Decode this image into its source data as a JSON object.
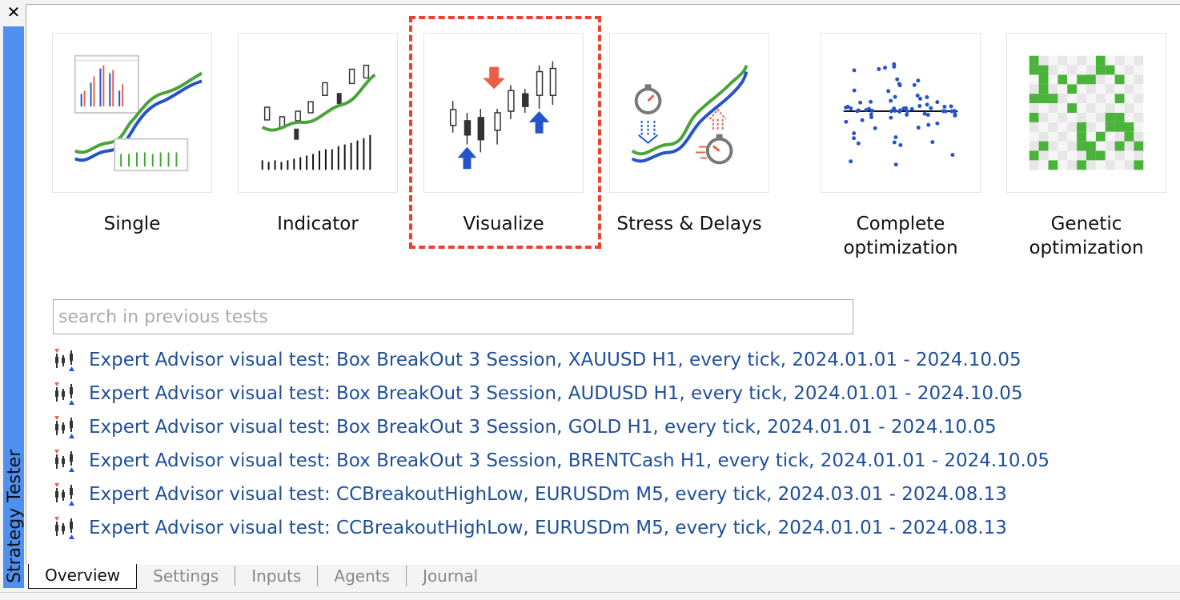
{
  "window": {
    "close_icon": "close-icon",
    "side_title": "Strategy Tester"
  },
  "modes": [
    {
      "label": "Single",
      "icon": "single-test-icon"
    },
    {
      "label": "Indicator",
      "icon": "indicator-test-icon"
    },
    {
      "label": "Visualize",
      "icon": "visualize-test-icon"
    },
    {
      "label": "Stress & Delays",
      "icon": "stress-delays-icon"
    },
    {
      "label": "Complete optimization",
      "icon": "complete-optimization-icon"
    },
    {
      "label": "Genetic optimization",
      "icon": "genetic-optimization-icon"
    }
  ],
  "selected_mode": "Visualize",
  "highlight_color": "#e8432d",
  "search": {
    "placeholder": "search in previous tests",
    "value": ""
  },
  "history": [
    "Expert Advisor visual test: Box BreakOut 3 Session, XAUUSD H1, every tick, 2024.01.01 - 2024.10.05",
    "Expert Advisor visual test: Box BreakOut 3 Session, AUDUSD H1, every tick, 2024.01.01 - 2024.10.05",
    "Expert Advisor visual test: Box BreakOut 3 Session, GOLD H1, every tick, 2024.01.01 - 2024.10.05",
    "Expert Advisor visual test: Box BreakOut 3 Session, BRENTCash H1, every tick, 2024.01.01 - 2024.10.05",
    "Expert Advisor visual test: CCBreakoutHighLow, EURUSDm M5, every tick, 2024.03.01 - 2024.08.13",
    "Expert Advisor visual test: CCBreakoutHighLow, EURUSDm M5, every tick, 2024.01.01 - 2024.08.13"
  ],
  "tabs": [
    "Overview",
    "Settings",
    "Inputs",
    "Agents",
    "Journal"
  ],
  "active_tab": "Overview"
}
